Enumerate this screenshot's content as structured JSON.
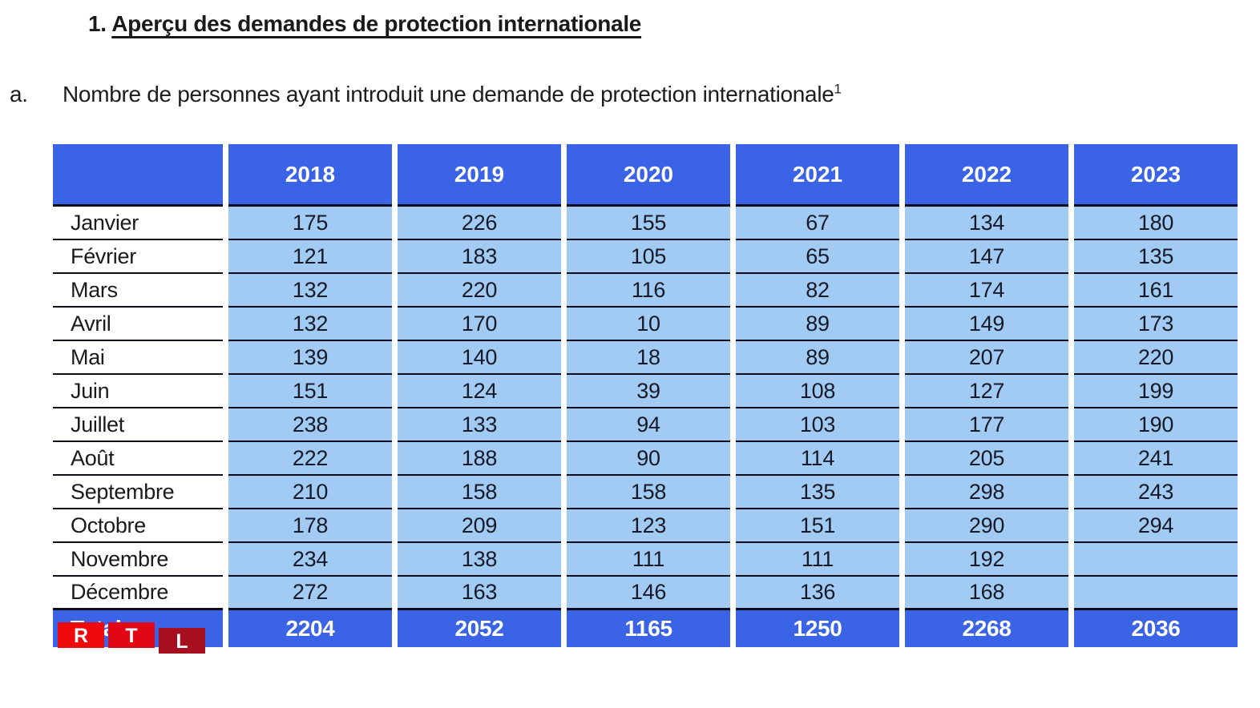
{
  "heading": {
    "number": "1.",
    "title": "Aperçu des demandes de protection internationale"
  },
  "subheading": {
    "marker": "a.",
    "text": "Nombre de personnes ayant introduit une demande de protection internationale",
    "footnote_ref": "1"
  },
  "colors": {
    "header_blue": "#3a63e6",
    "cell_light_blue": "#a2cbf3",
    "row_line": "#0c0c18",
    "logo_r_red": "#ee0a0a",
    "logo_t_red": "#e10714",
    "logo_l_dark_red": "#a60f1d"
  },
  "logo": {
    "letters": [
      "R",
      "T",
      "L"
    ]
  },
  "table": {
    "corner_label": "",
    "years": [
      "2018",
      "2019",
      "2020",
      "2021",
      "2022",
      "2023"
    ],
    "rows": [
      {
        "month": "Janvier",
        "values": [
          "175",
          "226",
          "155",
          "67",
          "134",
          "180"
        ]
      },
      {
        "month": "Février",
        "values": [
          "121",
          "183",
          "105",
          "65",
          "147",
          "135"
        ]
      },
      {
        "month": "Mars",
        "values": [
          "132",
          "220",
          "116",
          "82",
          "174",
          "161"
        ]
      },
      {
        "month": "Avril",
        "values": [
          "132",
          "170",
          "10",
          "89",
          "149",
          "173"
        ]
      },
      {
        "month": "Mai",
        "values": [
          "139",
          "140",
          "18",
          "89",
          "207",
          "220"
        ]
      },
      {
        "month": "Juin",
        "values": [
          "151",
          "124",
          "39",
          "108",
          "127",
          "199"
        ]
      },
      {
        "month": "Juillet",
        "values": [
          "238",
          "133",
          "94",
          "103",
          "177",
          "190"
        ]
      },
      {
        "month": "Août",
        "values": [
          "222",
          "188",
          "90",
          "114",
          "205",
          "241"
        ]
      },
      {
        "month": "Septembre",
        "values": [
          "210",
          "158",
          "158",
          "135",
          "298",
          "243"
        ]
      },
      {
        "month": "Octobre",
        "values": [
          "178",
          "209",
          "123",
          "151",
          "290",
          "294"
        ]
      },
      {
        "month": "Novembre",
        "values": [
          "234",
          "138",
          "111",
          "111",
          "192",
          ""
        ]
      },
      {
        "month": "Décembre",
        "values": [
          "272",
          "163",
          "146",
          "136",
          "168",
          ""
        ]
      }
    ],
    "total": {
      "label": "Total",
      "values": [
        "2204",
        "2052",
        "1165",
        "1250",
        "2268",
        "2036"
      ]
    }
  }
}
